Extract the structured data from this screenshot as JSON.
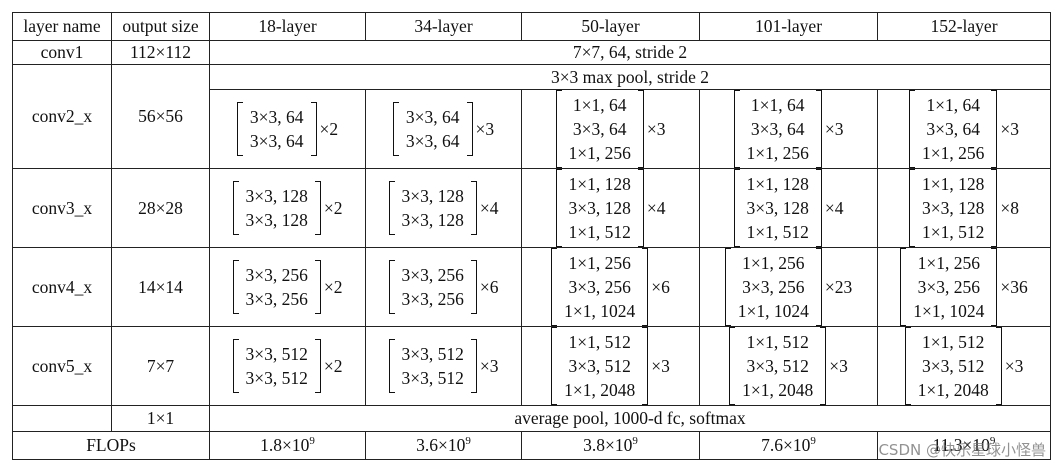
{
  "table": {
    "headers": [
      "layer name",
      "output size",
      "18-layer",
      "34-layer",
      "50-layer",
      "101-layer",
      "152-layer"
    ],
    "conv1": {
      "name": "conv1",
      "size": "112×112",
      "spec": "7×7, 64, stride 2"
    },
    "pool": "3×3 max pool, stride 2",
    "stages": [
      {
        "name": "conv2_x",
        "size": "56×56",
        "blocks": [
          {
            "lines": [
              "3×3, 64",
              "3×3, 64"
            ],
            "mult": "×2"
          },
          {
            "lines": [
              "3×3, 64",
              "3×3, 64"
            ],
            "mult": "×3"
          },
          {
            "lines": [
              "1×1, 64",
              "3×3, 64",
              "1×1, 256"
            ],
            "mult": "×3"
          },
          {
            "lines": [
              "1×1, 64",
              "3×3, 64",
              "1×1, 256"
            ],
            "mult": "×3"
          },
          {
            "lines": [
              "1×1, 64",
              "3×3, 64",
              "1×1, 256"
            ],
            "mult": "×3"
          }
        ]
      },
      {
        "name": "conv3_x",
        "size": "28×28",
        "blocks": [
          {
            "lines": [
              "3×3, 128",
              "3×3, 128"
            ],
            "mult": "×2"
          },
          {
            "lines": [
              "3×3, 128",
              "3×3, 128"
            ],
            "mult": "×4"
          },
          {
            "lines": [
              "1×1, 128",
              "3×3, 128",
              "1×1, 512"
            ],
            "mult": "×4"
          },
          {
            "lines": [
              "1×1, 128",
              "3×3, 128",
              "1×1, 512"
            ],
            "mult": "×4"
          },
          {
            "lines": [
              "1×1, 128",
              "3×3, 128",
              "1×1, 512"
            ],
            "mult": "×8"
          }
        ]
      },
      {
        "name": "conv4_x",
        "size": "14×14",
        "blocks": [
          {
            "lines": [
              "3×3, 256",
              "3×3, 256"
            ],
            "mult": "×2"
          },
          {
            "lines": [
              "3×3, 256",
              "3×3, 256"
            ],
            "mult": "×6"
          },
          {
            "lines": [
              "1×1, 256",
              "3×3, 256",
              "1×1, 1024"
            ],
            "mult": "×6"
          },
          {
            "lines": [
              "1×1, 256",
              "3×3, 256",
              "1×1, 1024"
            ],
            "mult": "×23"
          },
          {
            "lines": [
              "1×1, 256",
              "3×3, 256",
              "1×1, 1024"
            ],
            "mult": "×36"
          }
        ]
      },
      {
        "name": "conv5_x",
        "size": "7×7",
        "blocks": [
          {
            "lines": [
              "3×3, 512",
              "3×3, 512"
            ],
            "mult": "×2"
          },
          {
            "lines": [
              "3×3, 512",
              "3×3, 512"
            ],
            "mult": "×3"
          },
          {
            "lines": [
              "1×1, 512",
              "3×3, 512",
              "1×1, 2048"
            ],
            "mult": "×3"
          },
          {
            "lines": [
              "1×1, 512",
              "3×3, 512",
              "1×1, 2048"
            ],
            "mult": "×3"
          },
          {
            "lines": [
              "1×1, 512",
              "3×3, 512",
              "1×1, 2048"
            ],
            "mult": "×3"
          }
        ]
      }
    ],
    "final": {
      "size": "1×1",
      "spec": "average pool, 1000-d fc, softmax"
    },
    "flops": {
      "label": "FLOPs",
      "values": [
        {
          "base": "1.8×10",
          "exp": "9"
        },
        {
          "base": "3.6×10",
          "exp": "9"
        },
        {
          "base": "3.8×10",
          "exp": "9"
        },
        {
          "base": "7.6×10",
          "exp": "9"
        },
        {
          "base": "11.3×10",
          "exp": "9"
        }
      ]
    }
  },
  "watermark": "CSDN @快乐星球小怪兽"
}
